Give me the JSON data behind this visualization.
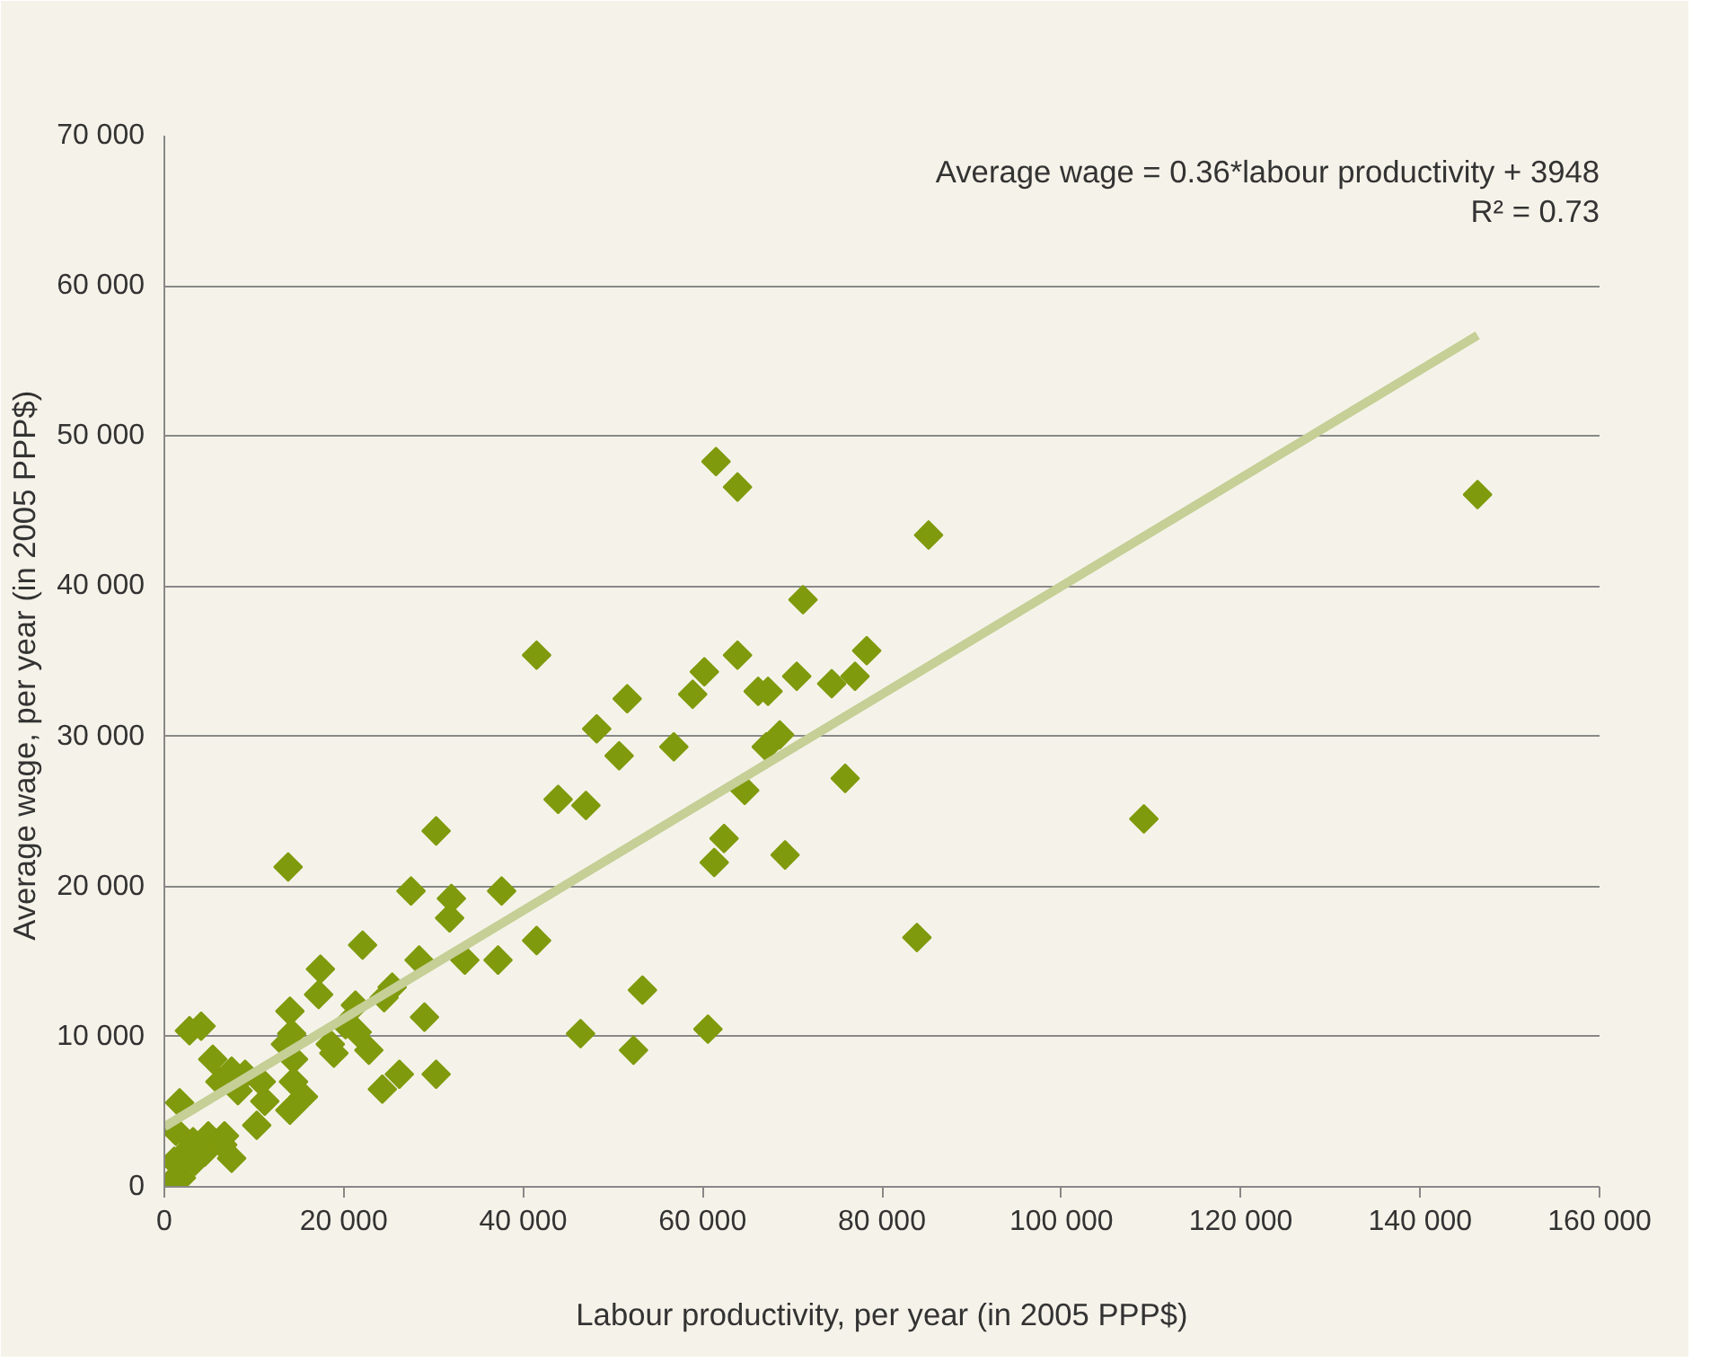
{
  "chart_data": {
    "type": "scatter",
    "xlabel": "Labour productivity, per year (in 2005 PPP$)",
    "ylabel": "Average wage,  per year (in 2005 PPP$)",
    "annotations": [
      "Average wage = 0.36*labour productivity + 3948",
      "R² = 0.73"
    ],
    "grid": "y",
    "xlim": [
      0,
      160000
    ],
    "ylim": [
      0,
      70000
    ],
    "xticks": [
      0,
      {
        "value": 20000,
        "label": "20 000"
      },
      {
        "value": 40000,
        "label": "40 000"
      },
      {
        "value": 60000,
        "label": "60 000"
      },
      {
        "value": 80000,
        "label": "80 000"
      },
      {
        "value": 100000,
        "label": "100 000"
      },
      {
        "value": 120000,
        "label": "120 000"
      },
      {
        "value": 140000,
        "label": "140 000"
      },
      {
        "value": 160000,
        "label": "160 000"
      }
    ],
    "yticks": [
      0,
      {
        "value": 10000,
        "label": "10 000"
      },
      {
        "value": 20000,
        "label": "20 000"
      },
      {
        "value": 30000,
        "label": "30 000"
      },
      {
        "value": 40000,
        "label": "40 000"
      },
      {
        "value": 50000,
        "label": "50 000"
      },
      {
        "value": 60000,
        "label": "60 000"
      },
      {
        "value": 70000,
        "label": "70 000"
      }
    ],
    "series": [
      {
        "marker": "diamond",
        "color": "#7f9a0c",
        "x": [
          61500,
          63900,
          146400,
          85200,
          71200,
          41500,
          63900,
          78300,
          60200,
          70500,
          77000,
          66200,
          67300,
          74400,
          58900,
          51600,
          48200,
          50700,
          56800,
          68600,
          67100,
          64700,
          75900,
          43900,
          47000,
          30300,
          62400,
          61300,
          69200,
          13800,
          109200,
          83900,
          41500,
          27500,
          32000,
          37600,
          31800,
          22100,
          17400,
          17200,
          28400,
          33500,
          37200,
          29000,
          53300,
          46400,
          52300,
          60600,
          30300,
          26200,
          24300,
          22800,
          24500,
          25400,
          21300,
          20200,
          21500,
          18900,
          18500,
          14000,
          14200,
          13500,
          14400,
          14400,
          15500,
          14000,
          10300,
          8200,
          6200,
          5400,
          2800,
          4100,
          7500,
          9000,
          10800,
          11200,
          1700,
          1300,
          3200,
          4900,
          6700,
          7500,
          4500,
          2400,
          1100,
          1900,
          3400,
          6500,
          900
        ],
        "values": [
          48300,
          46600,
          46100,
          43400,
          39100,
          35400,
          35400,
          35700,
          34300,
          34000,
          34000,
          33000,
          33000,
          33500,
          32800,
          32500,
          30500,
          28700,
          29300,
          30100,
          29300,
          26400,
          27200,
          25800,
          25400,
          23700,
          23200,
          21600,
          22100,
          21300,
          24500,
          16600,
          16400,
          19700,
          19200,
          19700,
          17900,
          16100,
          14500,
          12800,
          15100,
          15100,
          15100,
          11300,
          13100,
          10200,
          9100,
          10500,
          7500,
          7500,
          6500,
          9100,
          12600,
          13300,
          12100,
          10800,
          10300,
          8900,
          9500,
          11700,
          10200,
          9500,
          8500,
          7000,
          6000,
          5100,
          4100,
          6400,
          7000,
          8500,
          10400,
          10700,
          7700,
          7500,
          7000,
          5700,
          5600,
          3700,
          3000,
          3400,
          3400,
          1900,
          2300,
          2300,
          1700,
          600,
          1700,
          2800,
          400
        ]
      },
      {
        "type": "line",
        "color": "#c5cf96",
        "x": [
          0,
          146400
        ],
        "values": [
          4000,
          56700
        ]
      }
    ]
  }
}
